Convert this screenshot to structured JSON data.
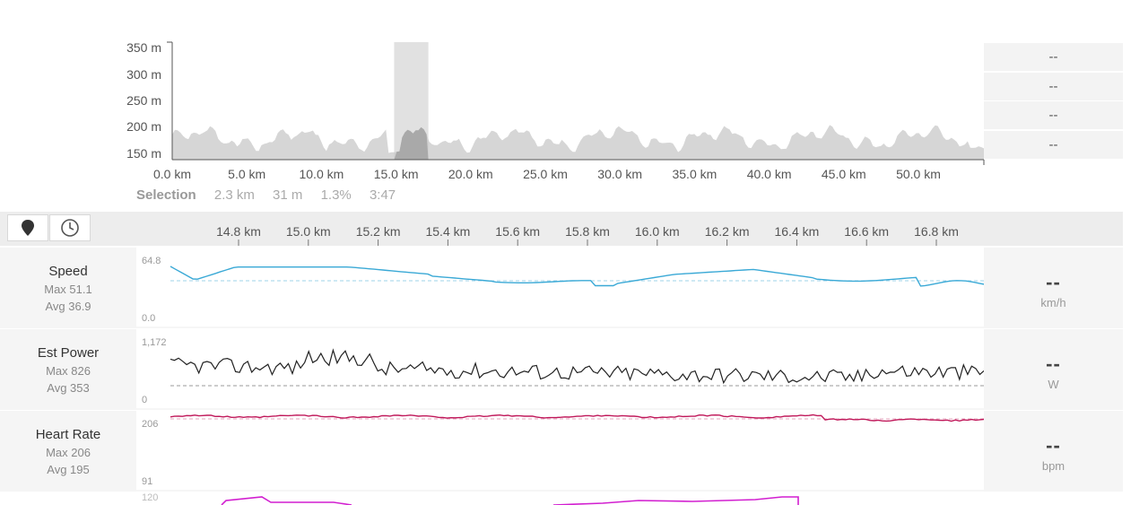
{
  "elevation": {
    "y_ticks": [
      "350 m",
      "300 m",
      "250 m",
      "200 m",
      "150 m"
    ],
    "x_ticks": [
      "0.0 km",
      "5.0 km",
      "10.0 km",
      "15.0 km",
      "20.0 km",
      "25.0 km",
      "30.0 km",
      "35.0 km",
      "40.0 km",
      "45.0 km",
      "50.0 km"
    ],
    "side_values": [
      "--",
      "--",
      "--",
      "--"
    ],
    "selection_start_km": 14.9,
    "selection_end_km": 17.2,
    "total_km": 54.5,
    "ylim": [
      140,
      350
    ]
  },
  "selection": {
    "label": "Selection",
    "distance": "2.3 km",
    "elevation": "31 m",
    "grade": "1.3%",
    "time": "3:47"
  },
  "toolbar": {
    "distance_icon": "map-pin-icon",
    "time_icon": "clock-icon"
  },
  "detail_axis": {
    "labels": [
      "14.8 km",
      "15.0 km",
      "15.2 km",
      "15.4 km",
      "15.6 km",
      "15.8 km",
      "16.0 km",
      "16.2 km",
      "16.4 km",
      "16.6 km",
      "16.8 km"
    ]
  },
  "metrics": [
    {
      "name": "Speed",
      "max": "Max 51.1",
      "avg": "Avg 36.9",
      "scale_top": "64.8",
      "scale_bottom": "0.0",
      "value": "--",
      "unit": "km/h",
      "color": "#3aa9d6"
    },
    {
      "name": "Est Power",
      "max": "Max 826",
      "avg": "Avg 353",
      "scale_top": "1,172",
      "scale_bottom": "0",
      "value": "--",
      "unit": "W",
      "color": "#222222"
    },
    {
      "name": "Heart Rate",
      "max": "Max 206",
      "avg": "Avg 195",
      "scale_top": "206",
      "scale_bottom": "91",
      "value": "--",
      "unit": "bpm",
      "color": "#c0185a"
    }
  ],
  "cadence": {
    "color": "#d21fd0"
  }
}
